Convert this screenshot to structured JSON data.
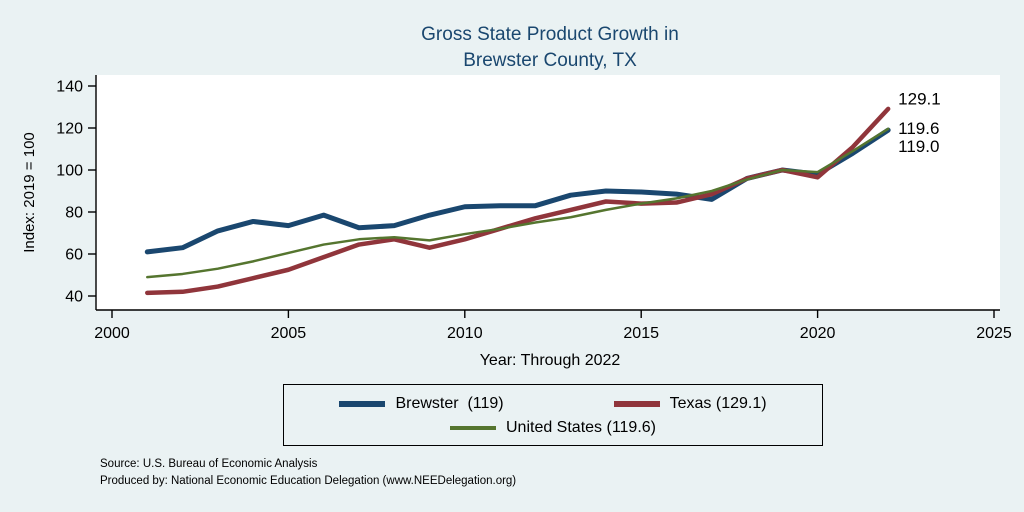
{
  "colors": {
    "background": "#eaf2f3",
    "plot_background": "#ffffff",
    "title_text": "#1a476f",
    "axis_text": "#000000"
  },
  "title": {
    "line1": "Gross State Product Growth in",
    "line2": "Brewster County, TX"
  },
  "source": {
    "line1": "Source: U.S. Bureau of Economic Analysis",
    "line2": "Produced by: National Economic Education Delegation (www.NEEDelegation.org)"
  },
  "chart_data": {
    "type": "line",
    "title": "Gross State Product Growth in Brewster County, TX",
    "xlabel": "Year: Through 2022",
    "ylabel": "Index: 2019 = 100",
    "xlim": [
      2000,
      2025
    ],
    "ylim": [
      40,
      140
    ],
    "xticks": [
      2000,
      2005,
      2010,
      2015,
      2020,
      2025
    ],
    "yticks": [
      40,
      60,
      80,
      100,
      120,
      140
    ],
    "grid": false,
    "legend_position": "bottom",
    "x": [
      2001,
      2002,
      2003,
      2004,
      2005,
      2006,
      2007,
      2008,
      2009,
      2010,
      2011,
      2012,
      2013,
      2014,
      2015,
      2016,
      2017,
      2018,
      2019,
      2020,
      2021,
      2022
    ],
    "series": [
      {
        "id": "brewster",
        "name": "Brewster  (119)",
        "color": "#1a476f",
        "width": 5,
        "values": [
          61,
          63,
          71,
          75.5,
          73.5,
          78.5,
          72.5,
          73.5,
          78.5,
          82.5,
          83,
          83,
          88,
          90,
          89.5,
          88.5,
          86,
          96,
          100,
          98,
          108,
          119
        ]
      },
      {
        "id": "texas",
        "name": "Texas (129.1)",
        "color": "#90353b",
        "width": 4.5,
        "values": [
          41.5,
          42,
          44.5,
          48.5,
          52.5,
          58.5,
          64.5,
          67,
          63,
          67,
          72,
          77,
          81,
          85,
          84,
          84.5,
          88.5,
          96,
          100,
          96.5,
          111,
          129.1
        ]
      },
      {
        "id": "united-states",
        "name": "United States (119.6)",
        "color": "#55752f",
        "width": 2.5,
        "values": [
          49,
          50.5,
          53,
          56.5,
          60.5,
          64.5,
          67,
          68,
          66.5,
          69.5,
          72,
          75,
          77.5,
          81,
          84,
          86.5,
          90,
          95.5,
          100,
          99,
          109,
          119.6
        ]
      }
    ],
    "end_labels": [
      {
        "text": "129.1",
        "label_y": 134
      },
      {
        "text": "119.6",
        "label_y": 120
      },
      {
        "text": "119.0",
        "label_y": 111.5
      }
    ]
  }
}
